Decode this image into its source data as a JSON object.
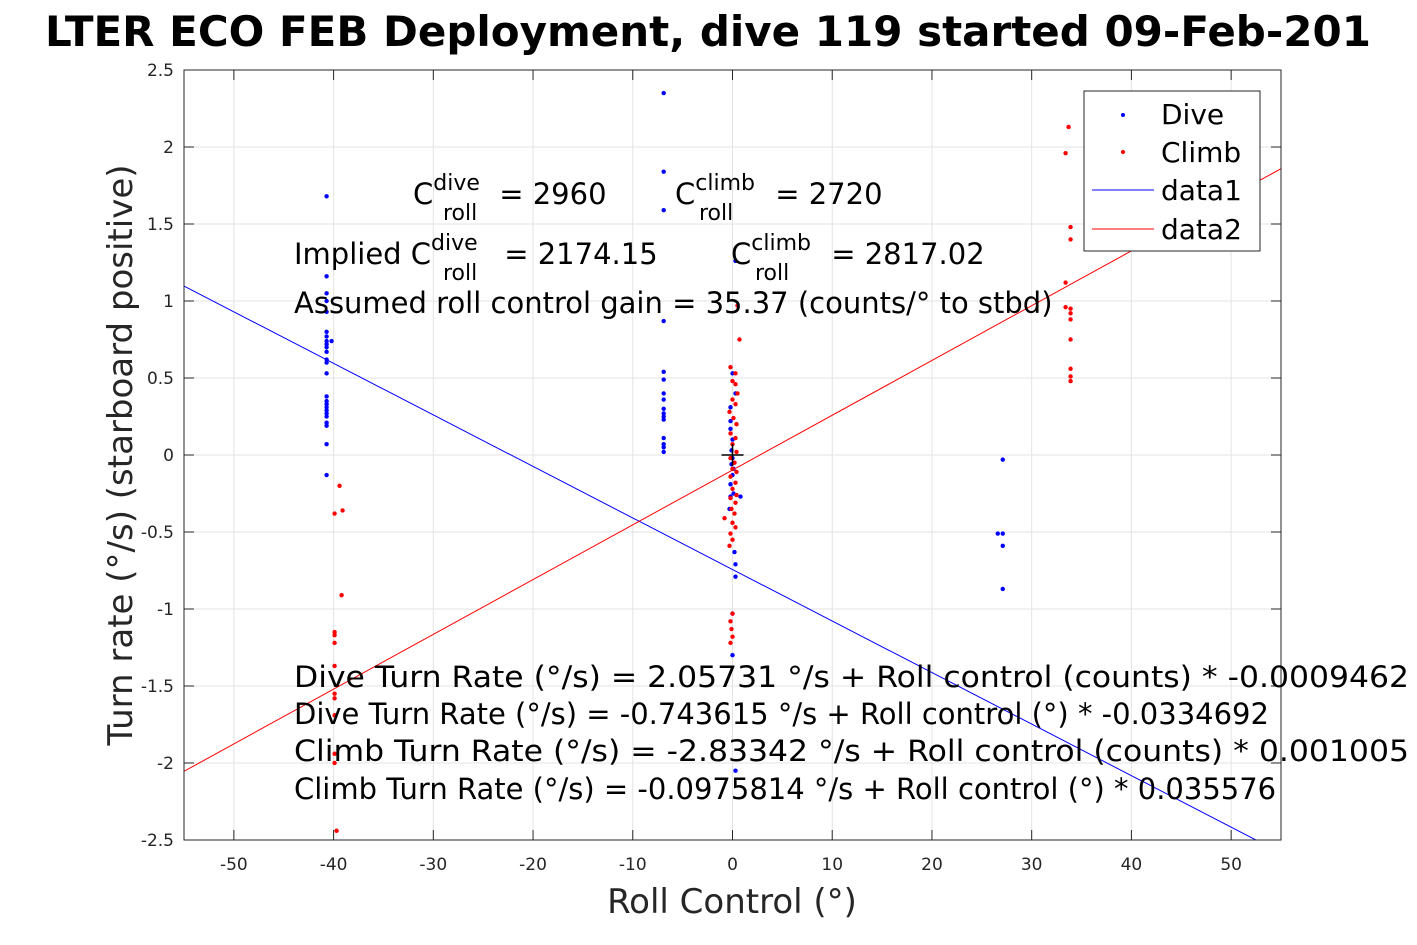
{
  "chart_data": {
    "type": "scatter",
    "title": "LTER ECO FEB Deployment, dive 119 started 09-Feb-201",
    "xlabel": "Roll Control (°)",
    "ylabel": "Turn rate (°/s) (starboard positive)",
    "xlim": [
      -55,
      55
    ],
    "ylim": [
      -2.5,
      2.5
    ],
    "xticks": [
      -50,
      -40,
      -30,
      -20,
      -10,
      0,
      10,
      20,
      30,
      40,
      50
    ],
    "yticks": [
      -2.5,
      -2,
      -1.5,
      -1,
      -0.5,
      0,
      0.5,
      1,
      1.5,
      2,
      2.5
    ],
    "grid": true,
    "legend_position": "top-right",
    "colors": {
      "dive": "#0000ff",
      "climb": "#ff0000",
      "marker": "#000000"
    },
    "series": [
      {
        "name": "Dive",
        "kind": "points",
        "color": "#0000ff",
        "points": [
          [
            -40.7,
            1.68
          ],
          [
            -40.7,
            1.16
          ],
          [
            -40.7,
            1.05
          ],
          [
            -40.7,
            1.0
          ],
          [
            -40.7,
            0.93
          ],
          [
            -40.7,
            0.8
          ],
          [
            -40.7,
            0.77
          ],
          [
            -40.7,
            0.74
          ],
          [
            -40.7,
            0.72
          ],
          [
            -40.7,
            0.7
          ],
          [
            -40.7,
            0.67
          ],
          [
            -40.7,
            0.62
          ],
          [
            -40.7,
            0.6
          ],
          [
            -40.7,
            0.53
          ],
          [
            -40.7,
            0.38
          ],
          [
            -40.7,
            0.35
          ],
          [
            -40.7,
            0.33
          ],
          [
            -40.7,
            0.31
          ],
          [
            -40.7,
            0.29
          ],
          [
            -40.7,
            0.27
          ],
          [
            -40.7,
            0.25
          ],
          [
            -40.7,
            0.21
          ],
          [
            -40.7,
            0.19
          ],
          [
            -40.7,
            0.07
          ],
          [
            -40.7,
            -0.13
          ],
          [
            -40.2,
            0.74
          ],
          [
            -6.9,
            2.35
          ],
          [
            -6.9,
            1.84
          ],
          [
            -6.9,
            1.59
          ],
          [
            -6.9,
            0.87
          ],
          [
            -6.9,
            0.54
          ],
          [
            -6.9,
            0.49
          ],
          [
            -6.9,
            0.4
          ],
          [
            -6.9,
            0.36
          ],
          [
            -6.9,
            0.3
          ],
          [
            -6.9,
            0.27
          ],
          [
            -6.9,
            0.25
          ],
          [
            -6.9,
            0.23
          ],
          [
            -6.9,
            0.11
          ],
          [
            -6.9,
            0.07
          ],
          [
            -6.9,
            0.05
          ],
          [
            -6.9,
            0.02
          ],
          [
            0.3,
            1.26
          ],
          [
            0.0,
            0.53
          ],
          [
            0.3,
            0.4
          ],
          [
            -0.2,
            0.31
          ],
          [
            -0.2,
            0.22
          ],
          [
            -0.2,
            0.17
          ],
          [
            0.0,
            0.1
          ],
          [
            -0.1,
            0.03
          ],
          [
            0.0,
            -0.02
          ],
          [
            -0.1,
            -0.06
          ],
          [
            0.1,
            -0.09
          ],
          [
            0.0,
            -0.13
          ],
          [
            -0.2,
            -0.19
          ],
          [
            0.1,
            -0.25
          ],
          [
            -0.2,
            -0.27
          ],
          [
            0.8,
            -0.27
          ],
          [
            -0.3,
            -0.35
          ],
          [
            0.2,
            -0.63
          ],
          [
            0.3,
            -0.71
          ],
          [
            0.3,
            -0.79
          ],
          [
            0.0,
            -1.03
          ],
          [
            0.0,
            -1.3
          ],
          [
            0.3,
            -2.05
          ],
          [
            27.1,
            -0.03
          ],
          [
            26.6,
            -0.51
          ],
          [
            27.1,
            -0.51
          ],
          [
            27.1,
            -0.59
          ],
          [
            27.1,
            -0.87
          ]
        ]
      },
      {
        "name": "Climb",
        "kind": "points",
        "color": "#ff0000",
        "points": [
          [
            -39.4,
            -0.2
          ],
          [
            -39.1,
            -0.36
          ],
          [
            -39.9,
            -0.38
          ],
          [
            -39.2,
            -0.91
          ],
          [
            -39.9,
            -1.15
          ],
          [
            -39.9,
            -1.17
          ],
          [
            -39.9,
            -1.22
          ],
          [
            -39.9,
            -1.37
          ],
          [
            -39.9,
            -1.55
          ],
          [
            -39.9,
            -1.58
          ],
          [
            -39.9,
            -1.69
          ],
          [
            -39.9,
            -1.94
          ],
          [
            -39.9,
            -2.0
          ],
          [
            -39.7,
            -2.44
          ],
          [
            0.5,
            0.97
          ],
          [
            0.7,
            0.75
          ],
          [
            -0.2,
            0.57
          ],
          [
            0.3,
            0.53
          ],
          [
            0.0,
            0.48
          ],
          [
            0.3,
            0.46
          ],
          [
            0.5,
            0.4
          ],
          [
            0.0,
            0.36
          ],
          [
            0.3,
            0.33
          ],
          [
            -0.3,
            0.28
          ],
          [
            0.1,
            0.24
          ],
          [
            0.4,
            0.2
          ],
          [
            -0.2,
            0.14
          ],
          [
            0.3,
            0.11
          ],
          [
            0.0,
            0.07
          ],
          [
            0.4,
            0.02
          ],
          [
            -0.2,
            -0.02
          ],
          [
            0.2,
            -0.05
          ],
          [
            0.0,
            -0.09
          ],
          [
            0.4,
            -0.11
          ],
          [
            -0.2,
            -0.14
          ],
          [
            0.3,
            -0.18
          ],
          [
            0.0,
            -0.22
          ],
          [
            0.4,
            -0.26
          ],
          [
            -0.2,
            -0.28
          ],
          [
            0.3,
            -0.31
          ],
          [
            -0.1,
            -0.35
          ],
          [
            0.2,
            -0.38
          ],
          [
            -0.8,
            -0.41
          ],
          [
            0.0,
            -0.44
          ],
          [
            0.3,
            -0.47
          ],
          [
            -0.2,
            -0.51
          ],
          [
            0.0,
            -0.55
          ],
          [
            -0.3,
            -0.59
          ],
          [
            0.0,
            -1.03
          ],
          [
            -0.2,
            -1.08
          ],
          [
            -0.1,
            -1.13
          ],
          [
            0.0,
            -1.18
          ],
          [
            -0.2,
            -1.22
          ],
          [
            33.7,
            2.13
          ],
          [
            33.4,
            1.96
          ],
          [
            33.9,
            1.48
          ],
          [
            33.9,
            1.4
          ],
          [
            33.4,
            1.12
          ],
          [
            33.4,
            0.96
          ],
          [
            33.9,
            0.95
          ],
          [
            33.9,
            0.92
          ],
          [
            33.9,
            0.88
          ],
          [
            33.9,
            0.75
          ],
          [
            33.9,
            0.56
          ],
          [
            33.9,
            0.51
          ],
          [
            33.9,
            0.48
          ]
        ]
      },
      {
        "name": "data1",
        "kind": "line",
        "color": "#0000ff",
        "points": [
          [
            -55,
            1.097
          ],
          [
            55,
            -2.584
          ]
        ]
      },
      {
        "name": "data2",
        "kind": "line",
        "color": "#ff0000",
        "points": [
          [
            -55,
            -2.054
          ],
          [
            55,
            1.859
          ]
        ]
      }
    ],
    "center_marker": {
      "shape": "plus",
      "x": 0,
      "y": 0
    },
    "annotations": {
      "c_dive": {
        "base": "C",
        "sup": "dive",
        "sub": "roll",
        "value": " = 2960"
      },
      "c_climb": {
        "base": "C",
        "sup": "climb",
        "sub": "roll",
        "value": " = 2720"
      },
      "implied_dive": {
        "prefix": "Implied C",
        "sup": "dive",
        "sub": "roll",
        "value": " = 2174.15"
      },
      "implied_climb": {
        "base": "C",
        "sup": "climb",
        "sub": "roll",
        "value": " = 2817.02"
      },
      "gain": "Assumed roll control gain = 35.37 (counts/° to stbd)",
      "fits": [
        "Dive Turn Rate (°/s) = 2.05731 °/s + Roll control (counts) * -0.0009462",
        "Dive Turn Rate (°/s) = -0.743615 °/s + Roll control (°) * -0.0334692",
        "Climb Turn Rate (°/s) = -2.83342 °/s + Roll control (counts) * 0.001005",
        "Climb Turn Rate (°/s) = -0.0975814 °/s + Roll control (°) * 0.035576"
      ]
    }
  }
}
